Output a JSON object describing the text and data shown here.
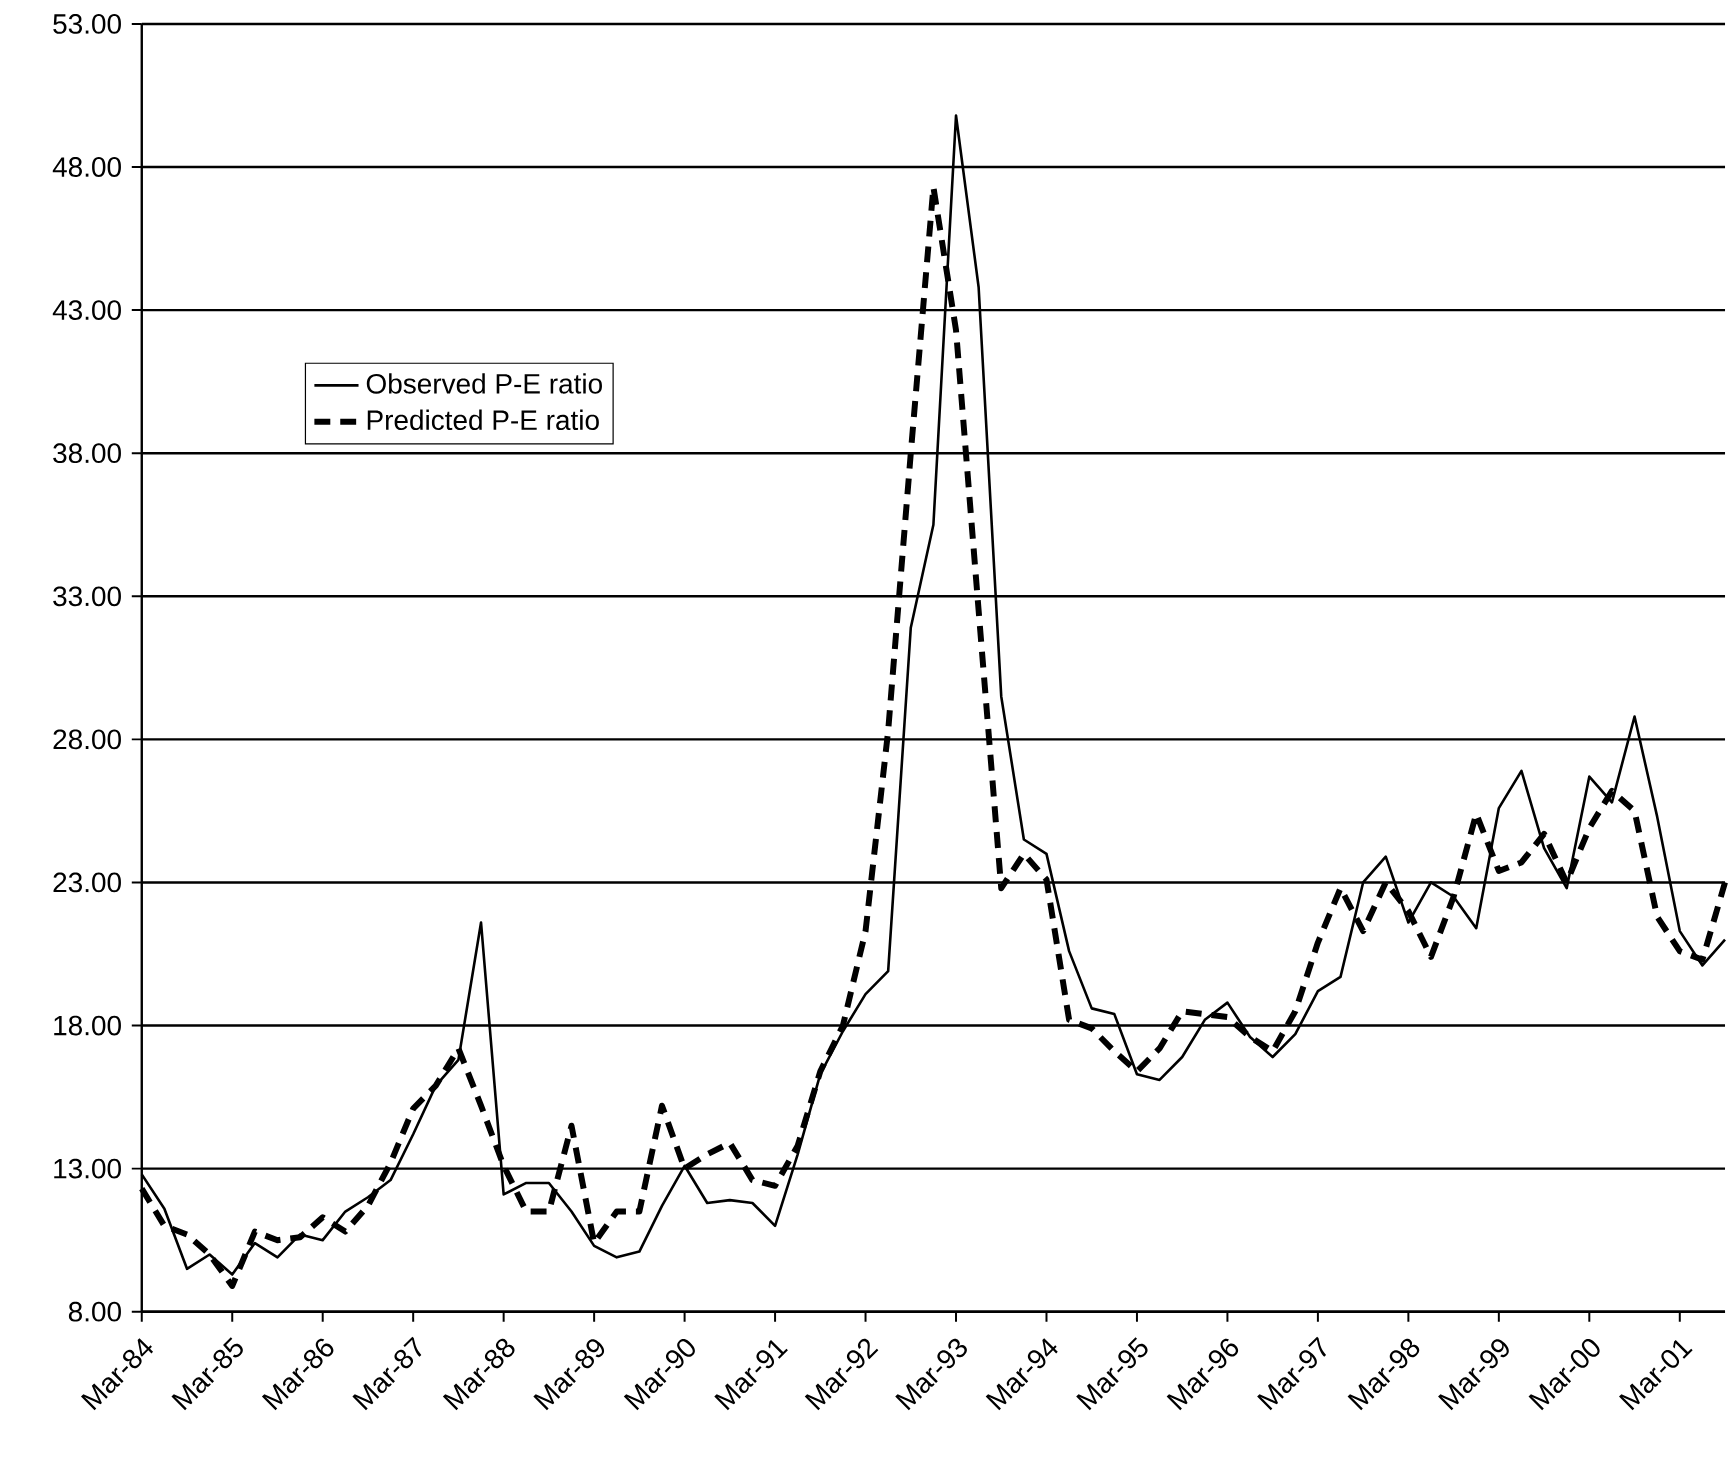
{
  "chart_data": {
    "type": "line",
    "categories": [
      "Mar-84",
      null,
      null,
      null,
      "Mar-85",
      null,
      null,
      null,
      "Mar-86",
      null,
      null,
      null,
      "Mar-87",
      null,
      null,
      null,
      "Mar-88",
      null,
      null,
      null,
      "Mar-89",
      null,
      null,
      null,
      "Mar-90",
      null,
      null,
      null,
      "Mar-91",
      null,
      null,
      null,
      "Mar-92",
      null,
      null,
      null,
      "Mar-93",
      null,
      null,
      null,
      "Mar-94",
      null,
      null,
      null,
      "Mar-95",
      null,
      null,
      null,
      "Mar-96",
      null,
      null,
      null,
      "Mar-97",
      null,
      null,
      null,
      "Mar-98",
      null,
      null,
      null,
      "Mar-99",
      null,
      null,
      null,
      "Mar-00",
      null,
      null,
      null,
      "Mar-01",
      null,
      null
    ],
    "series": [
      {
        "name": "Observed P-E ratio",
        "color": "#000000",
        "line_style": "solid",
        "values": [
          12.8,
          11.6,
          9.5,
          10.0,
          9.3,
          10.4,
          9.9,
          10.7,
          10.5,
          11.5,
          12.0,
          12.6,
          14.2,
          15.9,
          16.8,
          21.6,
          12.1,
          12.5,
          12.5,
          11.5,
          10.3,
          9.9,
          10.1,
          11.7,
          13.1,
          11.8,
          11.9,
          11.8,
          11.0,
          13.5,
          16.3,
          17.8,
          19.1,
          19.9,
          31.9,
          35.5,
          49.8,
          43.8,
          29.5,
          24.5,
          24.0,
          20.6,
          18.6,
          18.4,
          16.3,
          16.1,
          16.9,
          18.2,
          18.8,
          17.6,
          16.9,
          17.7,
          19.2,
          19.7,
          23.0,
          23.9,
          21.6,
          23.0,
          22.5,
          21.4,
          25.6,
          26.9,
          24.2,
          22.8,
          26.7,
          25.8,
          28.8,
          25.3,
          21.3,
          20.1,
          21.0
        ]
      },
      {
        "name": "Predicted P-E ratio",
        "color": "#000000",
        "line_style": "dashed",
        "values": [
          12.3,
          11.0,
          10.7,
          10.0,
          8.9,
          10.8,
          10.5,
          10.6,
          11.3,
          10.8,
          11.7,
          13.2,
          15.1,
          15.9,
          17.2,
          15.2,
          13.1,
          11.5,
          11.5,
          14.5,
          10.4,
          11.5,
          11.5,
          15.2,
          13.0,
          13.5,
          13.9,
          12.6,
          12.4,
          13.8,
          16.4,
          18.0,
          21.3,
          28.3,
          38.0,
          47.3,
          42.3,
          32.5,
          22.8,
          24.0,
          23.1,
          18.2,
          17.9,
          17.1,
          16.4,
          17.2,
          18.5,
          18.4,
          18.3,
          17.6,
          17.1,
          18.5,
          20.9,
          22.8,
          21.3,
          23.0,
          22.0,
          20.4,
          22.5,
          25.4,
          23.4,
          23.7,
          24.7,
          23.0,
          24.9,
          26.2,
          25.5,
          21.8,
          20.6,
          20.3,
          23.0
        ]
      }
    ],
    "ylim": [
      8,
      53
    ],
    "yticks": [
      {
        "value": 8,
        "label": "8.00"
      },
      {
        "value": 13,
        "label": "13.00"
      },
      {
        "value": 18,
        "label": "18.00"
      },
      {
        "value": 23,
        "label": "23.00"
      },
      {
        "value": 28,
        "label": "28.00"
      },
      {
        "value": 33,
        "label": "33.00"
      },
      {
        "value": 38,
        "label": "38.00"
      },
      {
        "value": 43,
        "label": "43.00"
      },
      {
        "value": 48,
        "label": "48.00"
      },
      {
        "value": 53,
        "label": "53.00"
      }
    ],
    "grid": "y",
    "legend": "top left",
    "marker": "none"
  }
}
